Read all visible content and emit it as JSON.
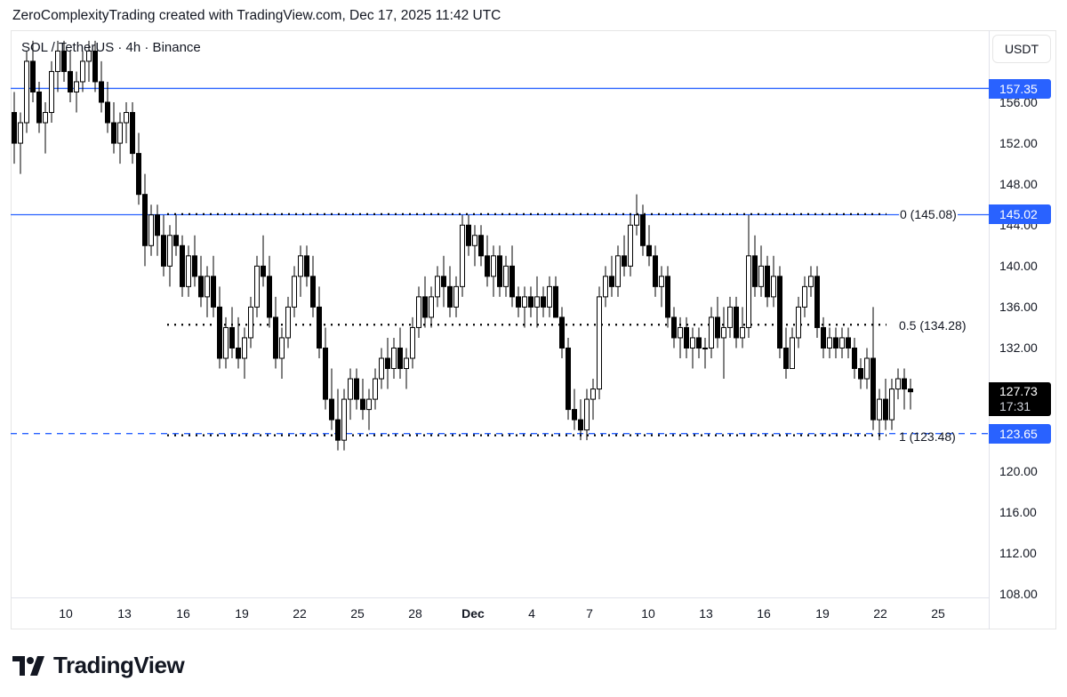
{
  "header": {
    "attribution": "ZeroComplexityTrading created with TradingView.com, Dec 17, 2025 11:42 UTC"
  },
  "symbol": {
    "title": "SOL / TetherUS · 4h · Binance",
    "pair": "SOL / TetherUS",
    "interval": "4h",
    "exchange": "Binance"
  },
  "price_axis": {
    "unit_button": "USDT",
    "ticks": [
      "156.00",
      "152.00",
      "148.00",
      "144.00",
      "140.00",
      "136.00",
      "132.00",
      "128.00",
      "124.00",
      "120.00",
      "116.00",
      "112.00",
      "108.00"
    ],
    "labels": {
      "upper_line": "157.35",
      "mid_line": "145.02",
      "last_price": "127.73",
      "countdown": "17:31",
      "lower_line": "123.65"
    }
  },
  "time_axis": {
    "ticks": [
      "10",
      "13",
      "16",
      "19",
      "22",
      "25",
      "28",
      "Dec",
      "4",
      "7",
      "10",
      "13",
      "16",
      "19",
      "22",
      "25"
    ]
  },
  "fib_levels": [
    {
      "label": "0 (145.08)",
      "level": 0,
      "price": 145.08
    },
    {
      "label": "0.5 (134.28)",
      "level": 0.5,
      "price": 134.28
    },
    {
      "label": "1 (123.48)",
      "level": 1,
      "price": 123.48
    }
  ],
  "horizontal_lines": [
    {
      "price": 157.35,
      "style": "solid",
      "color": "#2962ff"
    },
    {
      "price": 145.02,
      "style": "solid",
      "color": "#2962ff"
    },
    {
      "price": 123.65,
      "style": "dashed",
      "color": "#2962ff"
    }
  ],
  "colors": {
    "accent": "#2962ff",
    "up_candle_body": "#ffffff",
    "down_candle_body": "#000000",
    "wick": "#000000",
    "last_price_bg": "#000000"
  },
  "logo": {
    "text": "TradingView"
  },
  "chart_data": {
    "type": "candlestick",
    "title": "SOL / TetherUS · 4h · Binance",
    "xlabel": "",
    "ylabel": "USDT",
    "ylim": [
      107,
      160
    ],
    "x_ticks": [
      "10",
      "13",
      "16",
      "19",
      "22",
      "25",
      "28",
      "Dec",
      "4",
      "7",
      "10",
      "13",
      "16",
      "19",
      "22",
      "25"
    ],
    "y_ticks": [
      156,
      152,
      148,
      144,
      140,
      136,
      132,
      128,
      124,
      120,
      116,
      112,
      108
    ],
    "grid": false,
    "last_price": 127.73,
    "fibonacci": {
      "0": 145.08,
      "0.5": 134.28,
      "1": 123.48
    },
    "horizontal_levels": [
      157.35,
      145.02,
      123.65
    ],
    "candles_ohlc": [
      [
        155,
        157,
        150,
        152
      ],
      [
        152,
        155,
        149,
        154
      ],
      [
        154,
        161,
        153,
        160
      ],
      [
        160,
        162,
        156,
        157
      ],
      [
        157,
        158,
        153,
        154
      ],
      [
        154,
        156,
        151,
        155
      ],
      [
        155,
        160,
        154,
        159
      ],
      [
        159,
        162,
        157,
        161
      ],
      [
        161,
        162,
        158,
        159
      ],
      [
        159,
        161,
        156,
        157
      ],
      [
        157,
        159,
        155,
        158
      ],
      [
        158,
        161,
        157,
        160
      ],
      [
        160,
        162,
        158,
        161
      ],
      [
        161,
        162,
        157,
        158
      ],
      [
        158,
        160,
        155,
        156
      ],
      [
        156,
        158,
        153,
        154
      ],
      [
        154,
        156,
        151,
        152
      ],
      [
        152,
        155,
        150,
        154
      ],
      [
        154,
        156,
        152,
        155
      ],
      [
        155,
        156,
        150,
        151
      ],
      [
        151,
        153,
        146,
        147
      ],
      [
        147,
        149,
        140,
        142
      ],
      [
        142,
        146,
        141,
        145
      ],
      [
        145,
        146,
        141,
        143
      ],
      [
        143,
        145,
        139,
        140
      ],
      [
        140,
        144,
        138,
        143
      ],
      [
        143,
        145,
        141,
        142
      ],
      [
        142,
        143,
        137,
        138
      ],
      [
        138,
        142,
        137,
        141
      ],
      [
        141,
        143,
        138,
        139
      ],
      [
        139,
        141,
        136,
        137
      ],
      [
        137,
        140,
        135,
        139
      ],
      [
        139,
        141,
        135,
        136
      ],
      [
        136,
        138,
        130,
        131
      ],
      [
        131,
        135,
        130,
        134
      ],
      [
        134,
        136,
        131,
        132
      ],
      [
        132,
        135,
        130,
        131
      ],
      [
        131,
        134,
        129,
        133
      ],
      [
        133,
        137,
        132,
        136
      ],
      [
        136,
        141,
        135,
        140
      ],
      [
        140,
        143,
        138,
        139
      ],
      [
        139,
        141,
        134,
        135
      ],
      [
        135,
        137,
        130,
        131
      ],
      [
        131,
        134,
        129,
        133
      ],
      [
        133,
        137,
        132,
        136
      ],
      [
        136,
        140,
        135,
        139
      ],
      [
        139,
        142,
        137,
        141
      ],
      [
        141,
        142,
        138,
        139
      ],
      [
        139,
        141,
        135,
        136
      ],
      [
        136,
        138,
        131,
        132
      ],
      [
        132,
        134,
        126,
        127
      ],
      [
        127,
        130,
        124,
        125
      ],
      [
        125,
        128,
        122,
        123
      ],
      [
        123,
        128,
        122,
        127
      ],
      [
        127,
        130,
        125,
        129
      ],
      [
        129,
        130,
        126,
        127
      ],
      [
        127,
        129,
        125,
        126
      ],
      [
        126,
        128,
        124,
        127
      ],
      [
        127,
        130,
        126,
        129
      ],
      [
        129,
        132,
        128,
        131
      ],
      [
        131,
        133,
        128,
        130
      ],
      [
        130,
        133,
        129,
        132
      ],
      [
        132,
        134,
        129,
        130
      ],
      [
        130,
        132,
        128,
        131
      ],
      [
        131,
        135,
        130,
        134
      ],
      [
        134,
        138,
        133,
        137
      ],
      [
        137,
        139,
        134,
        135
      ],
      [
        135,
        138,
        134,
        137
      ],
      [
        137,
        140,
        136,
        139
      ],
      [
        139,
        141,
        136,
        138
      ],
      [
        138,
        140,
        135,
        136
      ],
      [
        136,
        139,
        135,
        138
      ],
      [
        138,
        145,
        137,
        144
      ],
      [
        144,
        145,
        141,
        142
      ],
      [
        142,
        144,
        140,
        143
      ],
      [
        143,
        144,
        140,
        141
      ],
      [
        141,
        143,
        138,
        139
      ],
      [
        139,
        142,
        137,
        141
      ],
      [
        141,
        142,
        137,
        138
      ],
      [
        138,
        141,
        137,
        140
      ],
      [
        140,
        142,
        136,
        137
      ],
      [
        137,
        138,
        135,
        136
      ],
      [
        136,
        138,
        134,
        137
      ],
      [
        137,
        138,
        135,
        136
      ],
      [
        136,
        139,
        134,
        137
      ],
      [
        137,
        138,
        135,
        136
      ],
      [
        136,
        139,
        135,
        138
      ],
      [
        138,
        139,
        135,
        135
      ],
      [
        135,
        136,
        131,
        132
      ],
      [
        132,
        133,
        125,
        126
      ],
      [
        126,
        128,
        124,
        125
      ],
      [
        125,
        127,
        123,
        124
      ],
      [
        124,
        128,
        123,
        127
      ],
      [
        127,
        129,
        125,
        128
      ],
      [
        128,
        138,
        127,
        137
      ],
      [
        137,
        140,
        136,
        139
      ],
      [
        139,
        141,
        137,
        138
      ],
      [
        138,
        142,
        137,
        141
      ],
      [
        141,
        143,
        139,
        140
      ],
      [
        140,
        145,
        139,
        144
      ],
      [
        144,
        147,
        143,
        145
      ],
      [
        145,
        146,
        141,
        142
      ],
      [
        142,
        144,
        140,
        141
      ],
      [
        141,
        142,
        137,
        138
      ],
      [
        138,
        140,
        136,
        139
      ],
      [
        139,
        140,
        134,
        135
      ],
      [
        135,
        136,
        132,
        133
      ],
      [
        133,
        135,
        131,
        134
      ],
      [
        134,
        135,
        131,
        132
      ],
      [
        132,
        134,
        130,
        133
      ],
      [
        133,
        134,
        131,
        132
      ],
      [
        132,
        133,
        130,
        132
      ],
      [
        132,
        136,
        131,
        135
      ],
      [
        135,
        137,
        132,
        133
      ],
      [
        133,
        136,
        129,
        134
      ],
      [
        134,
        137,
        133,
        136
      ],
      [
        136,
        137,
        132,
        133
      ],
      [
        133,
        136,
        132,
        134
      ],
      [
        134,
        145,
        133,
        141
      ],
      [
        141,
        143,
        137,
        138
      ],
      [
        138,
        142,
        137,
        140
      ],
      [
        140,
        141,
        136,
        137
      ],
      [
        137,
        141,
        136,
        139
      ],
      [
        139,
        140,
        131,
        132
      ],
      [
        132,
        134,
        129,
        130
      ],
      [
        130,
        134,
        130,
        133
      ],
      [
        133,
        137,
        132,
        136
      ],
      [
        136,
        139,
        135,
        138
      ],
      [
        138,
        140,
        137,
        139
      ],
      [
        139,
        140,
        133,
        134
      ],
      [
        134,
        135,
        131,
        132
      ],
      [
        132,
        134,
        131,
        133
      ],
      [
        133,
        134,
        131,
        132
      ],
      [
        132,
        134,
        131,
        133
      ],
      [
        133,
        134,
        131,
        132
      ],
      [
        132,
        133,
        129,
        130
      ],
      [
        130,
        131,
        128,
        129
      ],
      [
        129,
        132,
        128,
        131
      ],
      [
        131,
        136,
        124,
        125
      ],
      [
        125,
        128,
        123,
        127
      ],
      [
        127,
        129,
        124,
        125
      ],
      [
        125,
        129,
        124,
        128
      ],
      [
        128,
        130,
        127,
        129
      ],
      [
        129,
        130,
        126,
        128
      ],
      [
        128,
        129,
        126,
        127.73
      ]
    ]
  }
}
